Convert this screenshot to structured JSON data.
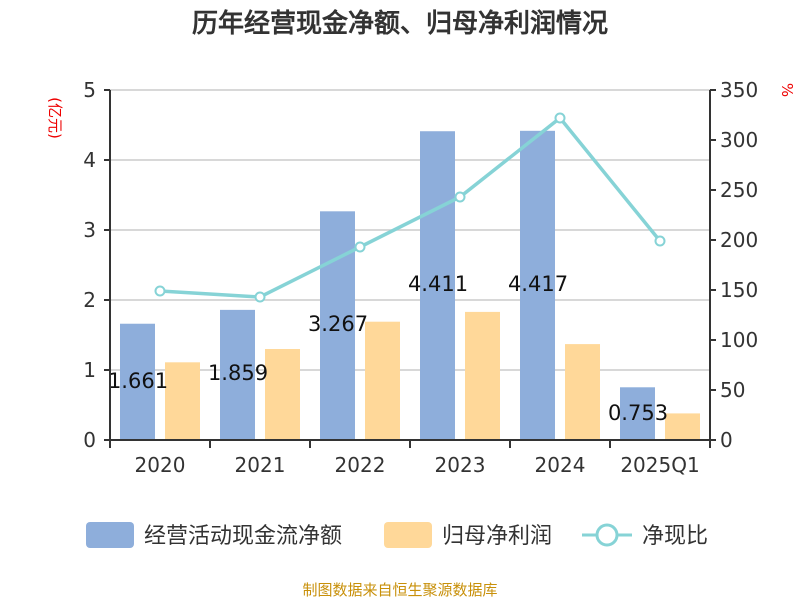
{
  "chart_data": {
    "type": "bar",
    "title": "历年经营现金净额、归母净利润情况",
    "categories": [
      "2020",
      "2021",
      "2022",
      "2023",
      "2024",
      "2025Q1"
    ],
    "series": [
      {
        "name": "经营活动现金流净额",
        "type": "bar",
        "axis": "left",
        "color": "#8eaedb",
        "values": [
          1.661,
          1.859,
          3.267,
          4.411,
          4.417,
          0.753
        ],
        "data_labels": [
          "1.661",
          "1.859",
          "3.267",
          "4.411",
          "4.417",
          "0.753"
        ]
      },
      {
        "name": "归母净利润",
        "type": "bar",
        "axis": "left",
        "color": "#ffd899",
        "values": [
          1.11,
          1.3,
          1.69,
          1.83,
          1.37,
          0.38
        ]
      },
      {
        "name": "净现比",
        "type": "line",
        "axis": "right",
        "color": "#86d3d6",
        "values": [
          149,
          143,
          193,
          243,
          322,
          199
        ]
      }
    ],
    "ylabel_left": "(亿元)",
    "ylabel_right": "%",
    "ylim_left": [
      0,
      5
    ],
    "ylim_right": [
      0,
      350
    ],
    "yticks_left": [
      "0",
      "1",
      "2",
      "3",
      "4",
      "5"
    ],
    "yticks_right": [
      "0",
      "50",
      "100",
      "150",
      "200",
      "250",
      "300",
      "350"
    ],
    "grid": true,
    "legend_position": "bottom"
  },
  "source": "制图数据来自恒生聚源数据库"
}
